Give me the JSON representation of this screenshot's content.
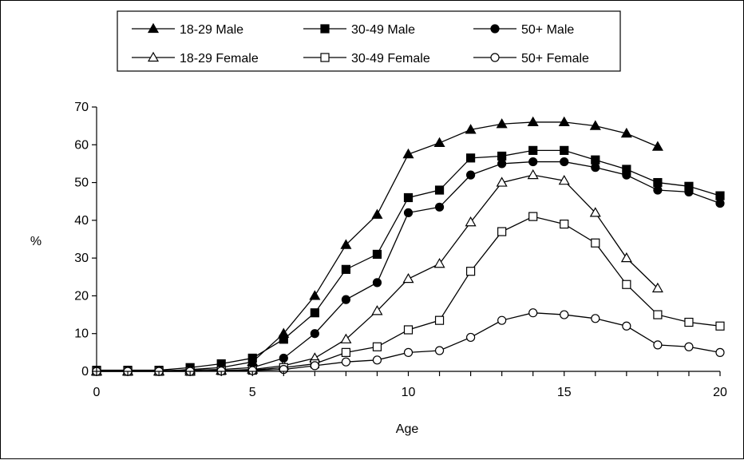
{
  "chart_data": {
    "type": "line",
    "title": "",
    "xlabel": "Age",
    "ylabel": "%",
    "xlim": [
      0,
      20
    ],
    "ylim": [
      0,
      70
    ],
    "xticks": [
      "0",
      "5",
      "10",
      "15",
      "20"
    ],
    "yticks": [
      "0",
      "10",
      "20",
      "30",
      "40",
      "50",
      "60",
      "70"
    ],
    "grid": false,
    "legend_position": "top",
    "series": [
      {
        "name": "18-29 Male",
        "marker": "triangle",
        "filled": true,
        "x": [
          0,
          1,
          2,
          3,
          4,
          5,
          6,
          7,
          8,
          9,
          10,
          11,
          12,
          13,
          14,
          15,
          16,
          17,
          18
        ],
        "y": [
          0,
          0,
          0,
          0.5,
          1,
          2.5,
          10,
          20,
          33.5,
          41.5,
          57.5,
          60.5,
          64,
          65.5,
          66,
          66,
          65,
          63,
          59.5
        ]
      },
      {
        "name": "30-49 Male",
        "marker": "square",
        "filled": true,
        "x": [
          0,
          1,
          2,
          3,
          4,
          5,
          6,
          7,
          8,
          9,
          10,
          11,
          12,
          13,
          14,
          15,
          16,
          17,
          18,
          19,
          20
        ],
        "y": [
          0.3,
          0.3,
          0.3,
          1,
          2,
          3.5,
          8.5,
          15.5,
          27,
          31,
          46,
          48,
          56.5,
          57,
          58.5,
          58.5,
          56,
          53.5,
          50,
          49,
          46.5
        ]
      },
      {
        "name": "50+ Male",
        "marker": "circle",
        "filled": true,
        "x": [
          0,
          1,
          2,
          3,
          4,
          5,
          6,
          7,
          8,
          9,
          10,
          11,
          12,
          13,
          14,
          15,
          16,
          17,
          18,
          19,
          20
        ],
        "y": [
          0.2,
          0.2,
          0.2,
          0.3,
          0.5,
          1,
          3.5,
          10,
          19,
          23.5,
          42,
          43.5,
          52,
          55,
          55.5,
          55.5,
          54,
          52,
          48,
          47.5,
          44.5
        ]
      },
      {
        "name": "18-29 Female",
        "marker": "triangle",
        "filled": false,
        "x": [
          0,
          1,
          2,
          3,
          4,
          5,
          6,
          7,
          8,
          9,
          10,
          11,
          12,
          13,
          14,
          15,
          16,
          17,
          18
        ],
        "y": [
          0,
          0,
          0,
          0,
          0.2,
          0.5,
          1.5,
          3.5,
          8.5,
          16,
          24.5,
          28.5,
          39.5,
          50,
          52,
          50.5,
          42,
          30,
          22
        ]
      },
      {
        "name": "30-49 Female",
        "marker": "square",
        "filled": false,
        "x": [
          0,
          1,
          2,
          3,
          4,
          5,
          6,
          7,
          8,
          9,
          10,
          11,
          12,
          13,
          14,
          15,
          16,
          17,
          18,
          19,
          20
        ],
        "y": [
          0,
          0,
          0,
          0,
          0.2,
          0.3,
          1,
          2,
          5,
          6.5,
          11,
          13.5,
          26.5,
          37,
          41,
          39,
          34,
          23,
          15,
          13,
          12
        ]
      },
      {
        "name": "50+ Female",
        "marker": "circle",
        "filled": false,
        "x": [
          0,
          1,
          2,
          3,
          4,
          5,
          6,
          7,
          8,
          9,
          10,
          11,
          12,
          13,
          14,
          15,
          16,
          17,
          18,
          19,
          20
        ],
        "y": [
          0,
          0,
          0,
          0,
          0.1,
          0.2,
          0.5,
          1.5,
          2.5,
          3,
          5,
          5.5,
          9,
          13.5,
          15.5,
          15,
          14,
          12,
          7,
          6.5,
          5
        ]
      }
    ]
  }
}
